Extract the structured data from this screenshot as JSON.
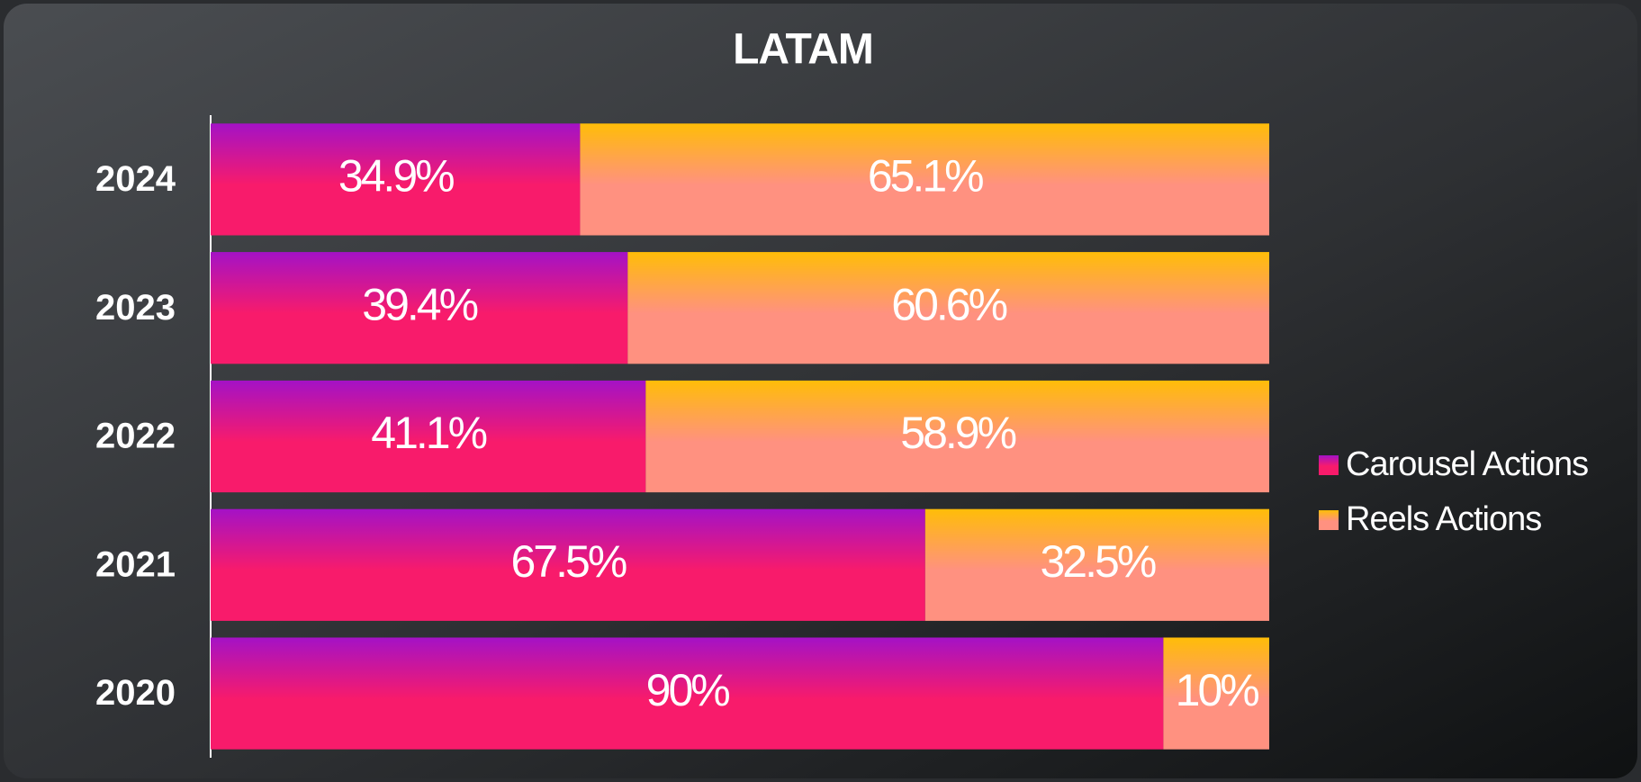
{
  "chart_data": {
    "type": "bar",
    "orientation": "horizontal",
    "stacked": true,
    "title": "LATAM",
    "categories": [
      "2024",
      "2023",
      "2022",
      "2021",
      "2020"
    ],
    "xlim": [
      0,
      100
    ],
    "legend": "right",
    "series": [
      {
        "name": "Carousel Actions",
        "color": [
          "#a412c6",
          "#f81b6b"
        ],
        "values": [
          34.9,
          39.4,
          41.1,
          67.5,
          90
        ],
        "value_labels": [
          "34.9%",
          "39.4%",
          "41.1%",
          "67.5%",
          "90%"
        ]
      },
      {
        "name": "Reels Actions",
        "color": [
          "#ffbd08",
          "#ff9180"
        ],
        "values": [
          65.1,
          60.6,
          58.9,
          32.5,
          10
        ],
        "value_labels": [
          "65.1%",
          "60.6%",
          "58.9%",
          "32.5%",
          "10%"
        ]
      }
    ]
  }
}
